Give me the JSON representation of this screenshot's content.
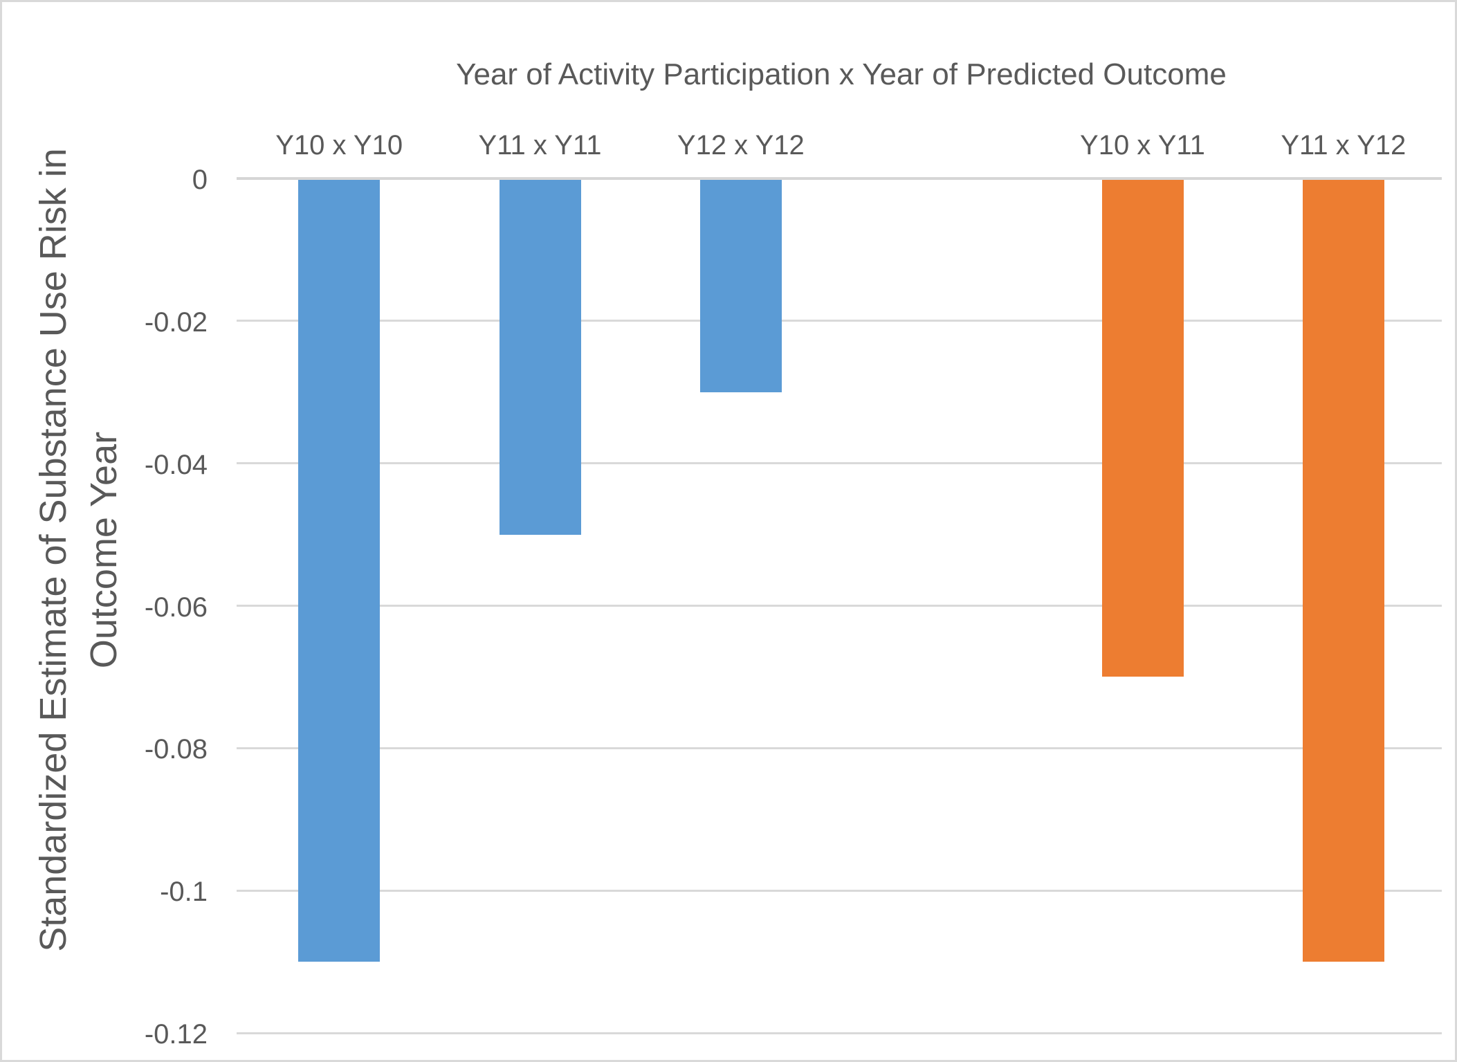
{
  "chart_data": {
    "type": "bar",
    "title": "Year of Activity Participation x Year of Predicted Outcome",
    "ylabel_lines": [
      "Standardized Estimate of Substance Use Risk in",
      "Outcome Year"
    ],
    "xlabel": "",
    "orientation": "vertical-negative",
    "num_slots": 6,
    "bars": [
      {
        "label": "Y10 x Y10",
        "value": -0.11,
        "color": "#5B9BD5",
        "slot": 0,
        "group": "same-year"
      },
      {
        "label": "Y11 x Y11",
        "value": -0.05,
        "color": "#5B9BD5",
        "slot": 1,
        "group": "same-year"
      },
      {
        "label": "Y12 x Y12",
        "value": -0.03,
        "color": "#5B9BD5",
        "slot": 2,
        "group": "same-year"
      },
      {
        "label": "Y10 x Y11",
        "value": -0.07,
        "color": "#ED7D31",
        "slot": 4,
        "group": "next-year"
      },
      {
        "label": "Y11 x Y12",
        "value": -0.11,
        "color": "#ED7D31",
        "slot": 5,
        "group": "next-year"
      }
    ],
    "ylim": [
      -0.12,
      0
    ],
    "yticks": [
      0,
      -0.02,
      -0.04,
      -0.06,
      -0.08,
      -0.1,
      -0.12
    ],
    "ytick_labels": [
      "0",
      "-0.02",
      "-0.04",
      "-0.06",
      "-0.08",
      "-0.1",
      "-0.12"
    ],
    "grid": true,
    "legend": "none",
    "colors": {
      "blue_series": "#5B9BD5",
      "orange_series": "#ED7D31",
      "gridline": "#D9D9D9",
      "text": "#595959",
      "chart_border": "#D9D9D9",
      "background": "#FFFFFF"
    }
  }
}
